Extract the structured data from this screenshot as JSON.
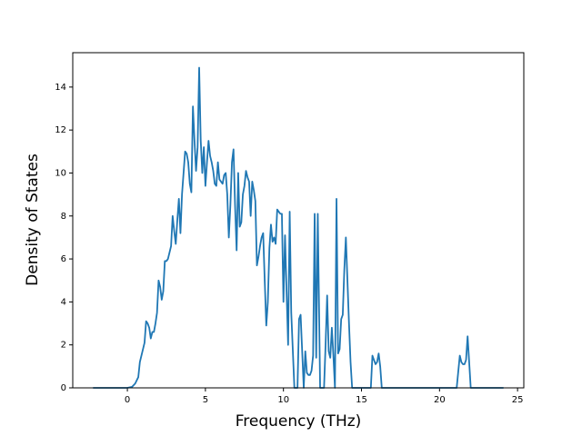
{
  "chart_data": {
    "type": "line",
    "xlabel": "Frequency (THz)",
    "ylabel": "Density of States",
    "xlim": [
      -3.5,
      25.4
    ],
    "ylim": [
      0,
      15.6
    ],
    "xticks": [
      0,
      5,
      10,
      15,
      20,
      25
    ],
    "yticks": [
      0,
      2,
      4,
      6,
      8,
      10,
      12,
      14
    ],
    "x": [
      -2.2,
      0,
      0.3,
      0.5,
      0.7,
      0.8,
      1.0,
      1.1,
      1.2,
      1.3,
      1.4,
      1.5,
      1.6,
      1.7,
      1.8,
      1.9,
      2.0,
      2.1,
      2.2,
      2.3,
      2.4,
      2.5,
      2.6,
      2.7,
      2.8,
      2.9,
      3.0,
      3.1,
      3.2,
      3.3,
      3.4,
      3.5,
      3.6,
      3.7,
      3.8,
      3.9,
      4.0,
      4.1,
      4.2,
      4.3,
      4.4,
      4.5,
      4.6,
      4.7,
      4.8,
      4.9,
      5.0,
      5.1,
      5.2,
      5.3,
      5.4,
      5.5,
      5.6,
      5.7,
      5.8,
      5.9,
      6.0,
      6.1,
      6.2,
      6.3,
      6.4,
      6.5,
      6.6,
      6.7,
      6.8,
      6.9,
      7.0,
      7.1,
      7.2,
      7.3,
      7.4,
      7.5,
      7.6,
      7.7,
      7.8,
      7.9,
      8.0,
      8.1,
      8.2,
      8.3,
      8.4,
      8.5,
      8.6,
      8.7,
      8.8,
      8.9,
      9.0,
      9.1,
      9.2,
      9.3,
      9.4,
      9.5,
      9.6,
      9.7,
      9.8,
      9.9,
      10.0,
      10.1,
      10.2,
      10.3,
      10.4,
      10.5,
      10.7,
      10.9,
      11.0,
      11.1,
      11.3,
      11.4,
      11.5,
      11.6,
      11.7,
      11.8,
      11.9,
      12.0,
      12.1,
      12.2,
      12.35,
      12.6,
      12.7,
      12.8,
      12.9,
      13.0,
      13.1,
      13.2,
      13.3,
      13.4,
      13.5,
      13.6,
      13.7,
      13.8,
      13.9,
      14.0,
      14.1,
      14.2,
      14.3,
      14.4,
      15.6,
      15.7,
      15.8,
      15.9,
      16.0,
      16.1,
      16.2,
      16.3,
      21.1,
      21.3,
      21.4,
      21.5,
      21.6,
      21.7,
      21.8,
      21.9,
      22.0,
      24.1
    ],
    "series": [
      {
        "color": "#1f77b4",
        "values": [
          0,
          0,
          0.05,
          0.2,
          0.5,
          1.2,
          1.8,
          2.1,
          3.1,
          3.0,
          2.8,
          2.3,
          2.6,
          2.6,
          3.0,
          3.5,
          5.0,
          4.7,
          4.1,
          4.5,
          5.9,
          5.9,
          6.0,
          6.3,
          6.6,
          8.0,
          7.3,
          6.7,
          7.8,
          8.8,
          7.2,
          9.0,
          10.0,
          11.0,
          10.9,
          10.5,
          9.5,
          9.1,
          13.1,
          11.5,
          10.1,
          11.2,
          14.9,
          11.5,
          10.0,
          11.2,
          9.4,
          10.5,
          11.5,
          10.8,
          10.5,
          10.1,
          9.5,
          9.4,
          10.5,
          9.7,
          9.6,
          9.5,
          9.9,
          10.0,
          9.0,
          7.0,
          8.5,
          10.5,
          11.1,
          8.5,
          6.4,
          10.0,
          7.5,
          7.7,
          9.0,
          9.4,
          10.1,
          9.8,
          9.6,
          8.0,
          9.6,
          9.2,
          8.7,
          5.7,
          6.1,
          6.6,
          7.0,
          7.2,
          5.0,
          2.9,
          4.0,
          6.5,
          7.6,
          6.8,
          7.0,
          6.7,
          8.3,
          8.2,
          8.1,
          8.1,
          4.0,
          7.1,
          4.5,
          2.0,
          8.2,
          3.5,
          0,
          0,
          3.2,
          3.4,
          0,
          1.7,
          0.7,
          0.6,
          0.6,
          0.8,
          1.5,
          8.1,
          1.4,
          8.1,
          0,
          0,
          2.0,
          4.3,
          1.7,
          1.4,
          2.8,
          1.5,
          0,
          8.8,
          1.6,
          1.8,
          3.2,
          3.4,
          5.5,
          7.0,
          5.0,
          3.0,
          1.2,
          0,
          0,
          1.5,
          1.3,
          1.1,
          1.2,
          1.6,
          1.0,
          0,
          0,
          1.5,
          1.2,
          1.1,
          1.1,
          1.3,
          2.4,
          1.2,
          0,
          0
        ]
      }
    ]
  }
}
